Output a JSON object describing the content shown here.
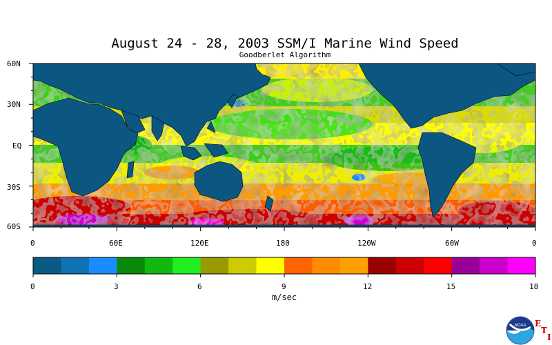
{
  "title": "August 24 - 28, 2003 SSM/I Marine Wind Speed",
  "subtitle": "Goodberlet Algorithm",
  "lat_labels": [
    "60N",
    "30N",
    "EQ",
    "30S",
    "60S"
  ],
  "lon_labels": [
    "0",
    "60E",
    "120E",
    "180",
    "120W",
    "60W",
    "0"
  ],
  "colorbar": {
    "colors": [
      "#0b5a86",
      "#0f72b4",
      "#1a8cff",
      "#0a8a0a",
      "#10b810",
      "#20ee20",
      "#999900",
      "#cccc00",
      "#ffff00",
      "#ff6400",
      "#ff8c00",
      "#ffa000",
      "#990000",
      "#cc0000",
      "#ff0000",
      "#990099",
      "#cc00cc",
      "#ff00ff"
    ],
    "ticks": [
      "0",
      "3",
      "6",
      "9",
      "12",
      "15",
      "18"
    ],
    "units": "m/sec"
  },
  "colors": {
    "land": "#0c5782",
    "ocean_base": "#9bd43a"
  },
  "logo": {
    "text": "NOAA",
    "letters": [
      "E",
      "T",
      "I"
    ]
  }
}
